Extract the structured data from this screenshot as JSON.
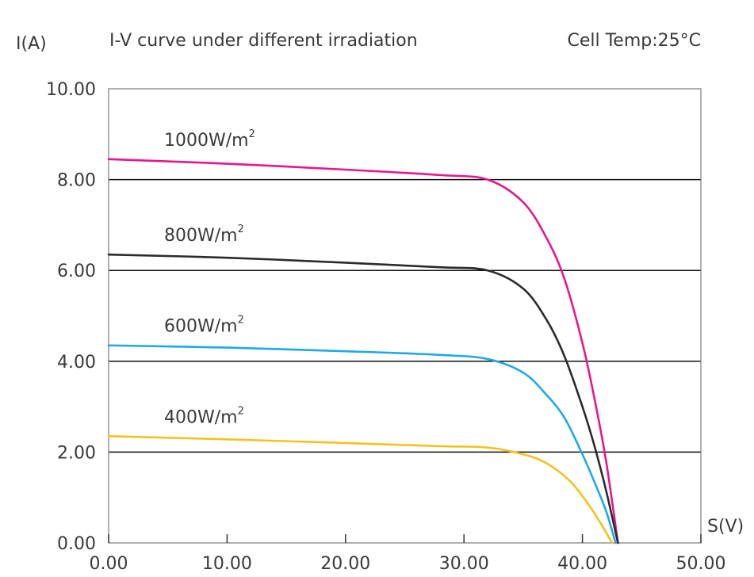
{
  "chart_data": {
    "type": "line",
    "title": "I-V curve under different irradiation",
    "subtitle": "Cell Temp:25°C",
    "xlabel": "S(V)",
    "ylabel": "I(A)",
    "xlim": [
      0,
      50
    ],
    "ylim": [
      0,
      10
    ],
    "x_ticks": [
      "0.00",
      "10.00",
      "20.00",
      "30.00",
      "40.00",
      "50.00"
    ],
    "y_ticks": [
      "0.00",
      "2.00",
      "4.00",
      "6.00",
      "8.00",
      "10.00"
    ],
    "grid": "horizontal",
    "series": [
      {
        "name": "1000W/m",
        "sup": "2",
        "color": "#e8168c",
        "x": [
          0,
          10,
          20,
          28,
          32,
          35,
          37,
          38.5,
          40,
          41,
          42,
          43
        ],
        "y": [
          8.45,
          8.35,
          8.22,
          8.1,
          8.0,
          7.5,
          6.7,
          5.8,
          4.4,
          3.2,
          1.8,
          0
        ]
      },
      {
        "name": "800W/m",
        "sup": "2",
        "color": "#2b2b2b",
        "x": [
          0,
          10,
          20,
          28,
          32,
          35,
          37,
          38.5,
          40,
          41,
          42,
          43
        ],
        "y": [
          6.35,
          6.28,
          6.17,
          6.07,
          6.0,
          5.6,
          4.9,
          4.1,
          3.0,
          2.15,
          1.15,
          0
        ]
      },
      {
        "name": "600W/m",
        "sup": "2",
        "color": "#1fa9e6",
        "x": [
          0,
          10,
          20,
          28,
          32,
          35,
          37,
          38.5,
          40,
          41,
          42,
          42.8
        ],
        "y": [
          4.35,
          4.3,
          4.22,
          4.14,
          4.05,
          3.75,
          3.25,
          2.75,
          1.95,
          1.35,
          0.7,
          0
        ]
      },
      {
        "name": "400W/m",
        "sup": "2",
        "color": "#f5c21d",
        "x": [
          0,
          10,
          20,
          28,
          32,
          35,
          37,
          39,
          40.5,
          41.5,
          42.5
        ],
        "y": [
          2.35,
          2.28,
          2.2,
          2.13,
          2.1,
          1.95,
          1.75,
          1.35,
          0.85,
          0.45,
          0
        ]
      }
    ]
  }
}
